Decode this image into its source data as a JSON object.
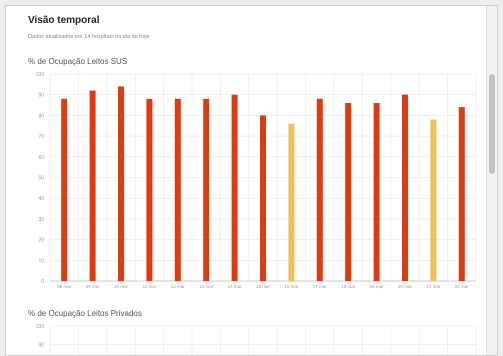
{
  "panel": {
    "title": "Visão temporal",
    "subtitle": "Dados atualizados por 14 hospitais no dia de hoje"
  },
  "colors": {
    "red": "#e03a10",
    "yellow": "#f0c05a",
    "grid": "#e6e6e6",
    "axis": "#bdbdbd",
    "tick": "#9a9a9a"
  },
  "chart_data": [
    {
      "type": "bar",
      "title": "% de Ocupação Leitos SUS",
      "ylim": [
        0,
        100
      ],
      "yticks": [
        0,
        10,
        20,
        30,
        40,
        50,
        60,
        70,
        80,
        90,
        100
      ],
      "grid": true,
      "categories": [
        "08 mar",
        "09 mar",
        "10 mar",
        "11 mar",
        "12 mar",
        "13 mar",
        "14 mar",
        "15 mar",
        "16 mar",
        "17 mar",
        "18 mar",
        "19 mar",
        "20 mar",
        "21 mar",
        "22 mar"
      ],
      "values": [
        88,
        92,
        94,
        88,
        88,
        88,
        90,
        80,
        76,
        88,
        86,
        86,
        90,
        78,
        84
      ],
      "bar_colors": [
        "red",
        "red",
        "red",
        "red",
        "red",
        "red",
        "red",
        "red",
        "yellow",
        "red",
        "red",
        "red",
        "red",
        "yellow",
        "red"
      ]
    },
    {
      "type": "bar",
      "title": "% de Ocupação Leitos Privados",
      "ylim": [
        0,
        100
      ],
      "yticks": [
        90,
        100
      ],
      "grid": true,
      "categories": [],
      "values": []
    }
  ]
}
